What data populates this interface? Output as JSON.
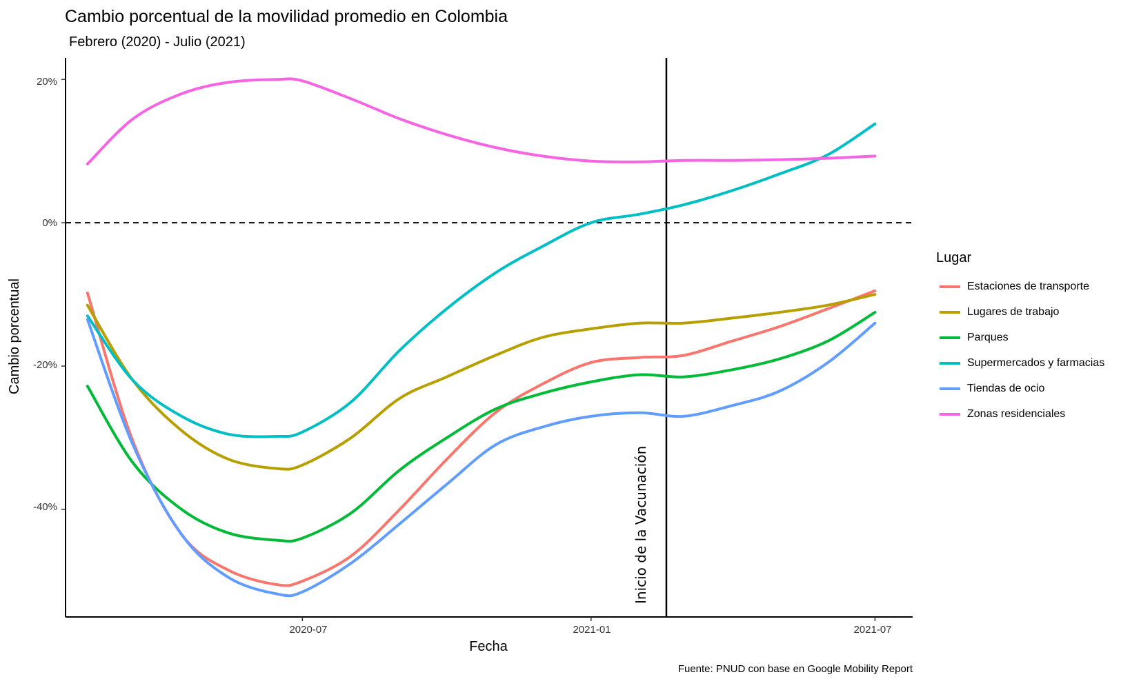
{
  "chart_data": {
    "type": "line",
    "title": "Cambio porcentual de la movilidad promedio en Colombia",
    "subtitle": "Febrero (2020) - Julio (2021)",
    "xlabel": "Fecha",
    "ylabel": "Cambio porcentual",
    "caption": "Fuente: PNUD con base en Google Mobility Report",
    "x_ticks": [
      "2020-07",
      "2021-01",
      "2021-07"
    ],
    "y_ticks": [
      "-40%",
      "-20%",
      "0%",
      "20%"
    ],
    "ylim": [
      -55,
      23
    ],
    "xlim": [
      "2020-02-01",
      "2021-07-25"
    ],
    "grid": false,
    "reference_lines": [
      {
        "orientation": "horizontal",
        "y": 0,
        "style": "dashed"
      },
      {
        "orientation": "vertical",
        "x": "2021-02-18",
        "style": "solid",
        "label": "Inicio de la Vacunación"
      }
    ],
    "legend": {
      "title": "Lugar",
      "position": "right"
    },
    "x": [
      "2020-02-15",
      "2020-03-15",
      "2020-04-15",
      "2020-05-15",
      "2020-06-15",
      "2020-07-01",
      "2020-08-01",
      "2020-09-01",
      "2020-10-01",
      "2020-11-01",
      "2020-12-01",
      "2021-01-01",
      "2021-02-01",
      "2021-03-01",
      "2021-04-01",
      "2021-05-01",
      "2021-06-01",
      "2021-07-01"
    ],
    "series": [
      {
        "name": " Estaciones de transporte",
        "color": "#F8766D",
        "values": [
          -9.8,
          -30.5,
          -43.5,
          -48.5,
          -50.5,
          -50.0,
          -46.5,
          -40.0,
          -33.0,
          -26.5,
          -22.5,
          -19.5,
          -18.8,
          -18.5,
          -16.5,
          -14.5,
          -12.0,
          -9.5
        ]
      },
      {
        "name": "Lugares de trabajo",
        "color": "#B79F00",
        "values": [
          -11.5,
          -22.0,
          -29.0,
          -33.0,
          -34.3,
          -33.8,
          -30.0,
          -24.5,
          -21.5,
          -18.5,
          -16.0,
          -14.8,
          -14.0,
          -14.0,
          -13.3,
          -12.5,
          -11.5,
          -10.0
        ]
      },
      {
        "name": "Parques",
        "color": "#00BA38",
        "values": [
          -22.8,
          -33.5,
          -40.0,
          -43.3,
          -44.3,
          -44.0,
          -40.5,
          -34.5,
          -30.0,
          -26.0,
          -23.8,
          -22.2,
          -21.2,
          -21.5,
          -20.5,
          -19.0,
          -16.5,
          -12.5
        ]
      },
      {
        "name": "Supermercados y farmacias",
        "color": "#00BFC4",
        "values": [
          -13.0,
          -22.0,
          -27.0,
          -29.5,
          -29.8,
          -29.2,
          -25.0,
          -17.8,
          -12.0,
          -7.0,
          -3.3,
          0.0,
          1.2,
          2.5,
          4.5,
          6.8,
          9.5,
          13.8
        ]
      },
      {
        "name": "Tiendas de ocio",
        "color": "#619CFF",
        "values": [
          -13.5,
          -31.0,
          -43.5,
          -49.5,
          -51.8,
          -51.5,
          -47.5,
          -42.0,
          -36.5,
          -31.0,
          -28.5,
          -27.0,
          -26.5,
          -27.0,
          -25.5,
          -23.5,
          -19.5,
          -14.0
        ]
      },
      {
        "name": "Zonas residenciales",
        "color": "#F564E3",
        "values": [
          8.2,
          14.5,
          18.0,
          19.6,
          20.0,
          19.8,
          17.3,
          14.5,
          12.3,
          10.5,
          9.3,
          8.6,
          8.5,
          8.7,
          8.7,
          8.8,
          9.0,
          9.3
        ]
      }
    ]
  }
}
